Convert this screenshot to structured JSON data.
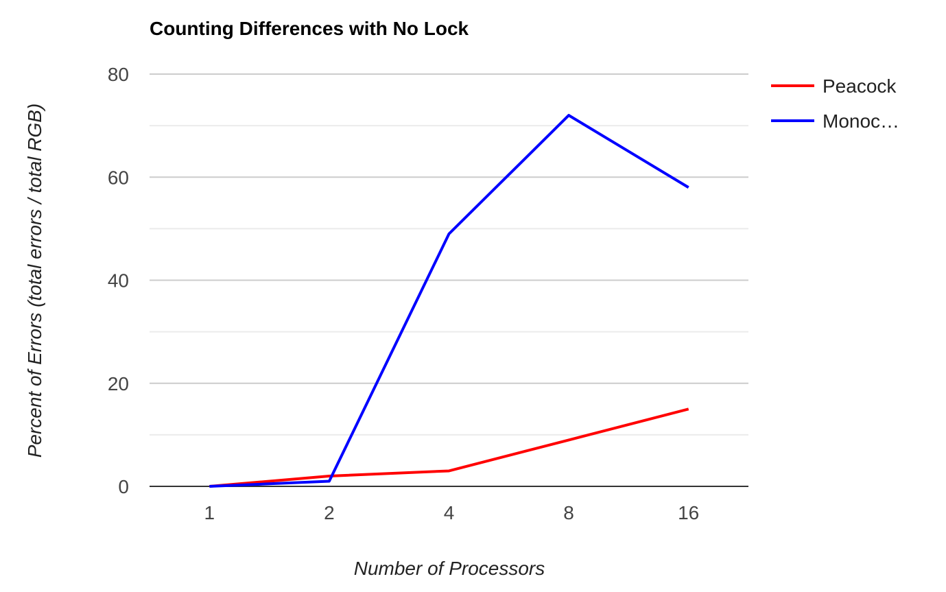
{
  "chart_data": {
    "type": "line",
    "title": "Counting Differences with No Lock",
    "xlabel": "Number of Processors",
    "ylabel": "Percent of Errors (total errors / total RGB)",
    "categories": [
      "1",
      "2",
      "4",
      "8",
      "16"
    ],
    "yticks": [
      "0",
      "20",
      "40",
      "60",
      "80"
    ],
    "ylim": [
      0,
      80
    ],
    "grid": true,
    "legend_position": "right",
    "series": [
      {
        "name": "Peacock",
        "color": "#ff0000",
        "values": [
          0,
          2,
          3,
          9,
          15
        ]
      },
      {
        "name": "Monoc…",
        "color": "#0000ff",
        "values": [
          0,
          1,
          49,
          72,
          58
        ]
      }
    ]
  }
}
